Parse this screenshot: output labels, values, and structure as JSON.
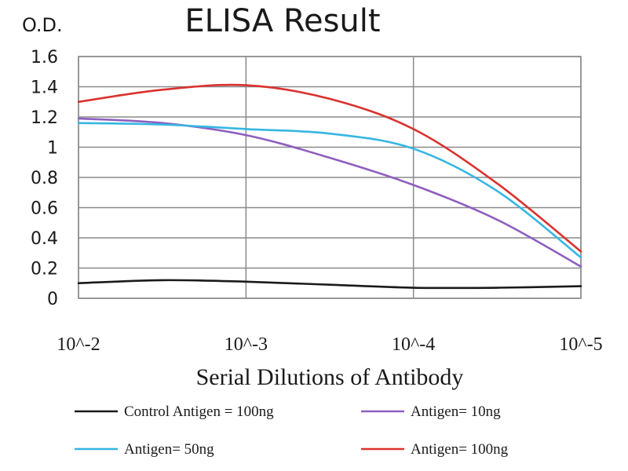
{
  "chart_data": {
    "type": "line",
    "title": "ELISA Result",
    "ylabel": "O.D.",
    "xlabel": "Serial Dilutions of Antibody",
    "categories": [
      "10^-2",
      "10^-3",
      "10^-4",
      "10^-5"
    ],
    "ylim": [
      0,
      1.6
    ],
    "yticks": [
      "0",
      "0.2",
      "0.4",
      "0.6",
      "0.8",
      "1",
      "1.2",
      "1.4",
      "1.6"
    ],
    "grid": true,
    "legend_position": "bottom",
    "series": [
      {
        "name": "Control Antigen = 100ng",
        "color": "#1a1a1a",
        "points": [
          [
            0,
            0.1
          ],
          [
            0.5,
            0.12
          ],
          [
            1,
            0.11
          ],
          [
            1.5,
            0.09
          ],
          [
            2,
            0.07
          ],
          [
            2.5,
            0.07
          ],
          [
            3,
            0.08
          ]
        ]
      },
      {
        "name": "Antigen= 10ng",
        "color": "#8e5fbf",
        "points": [
          [
            0,
            1.19
          ],
          [
            0.5,
            1.16
          ],
          [
            1,
            1.08
          ],
          [
            1.5,
            0.93
          ],
          [
            2,
            0.75
          ],
          [
            2.5,
            0.52
          ],
          [
            3,
            0.21
          ]
        ]
      },
      {
        "name": "Antigen= 50ng",
        "color": "#36b6e3",
        "points": [
          [
            0,
            1.16
          ],
          [
            0.5,
            1.15
          ],
          [
            1,
            1.12
          ],
          [
            1.5,
            1.09
          ],
          [
            2,
            0.99
          ],
          [
            2.5,
            0.71
          ],
          [
            3,
            0.27
          ]
        ]
      },
      {
        "name": "Antigen= 100ng",
        "color": "#d9322e",
        "points": [
          [
            0,
            1.3
          ],
          [
            0.5,
            1.38
          ],
          [
            1,
            1.41
          ],
          [
            1.5,
            1.32
          ],
          [
            2,
            1.12
          ],
          [
            2.5,
            0.76
          ],
          [
            3,
            0.31
          ]
        ]
      }
    ]
  }
}
